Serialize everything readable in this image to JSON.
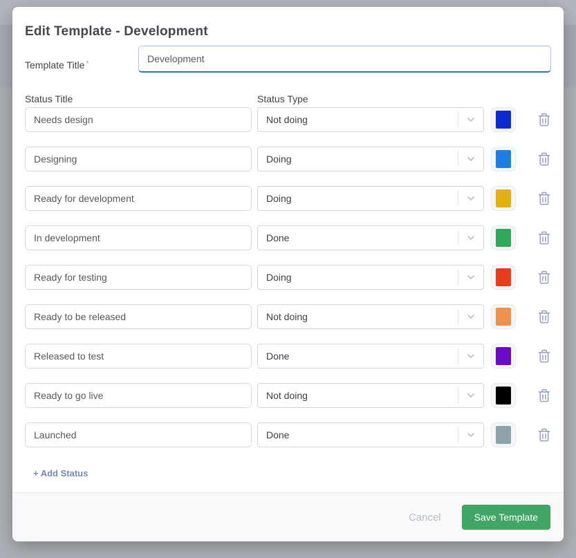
{
  "modal": {
    "title": "Edit Template - Development",
    "template_title": {
      "label": "Template Title",
      "required_mark": "*",
      "value": "Development"
    },
    "columns": {
      "status_title": "Status Title",
      "status_type": "Status Type"
    },
    "statuses": [
      {
        "title": "Needs design",
        "type": "Not doing",
        "color": "#0b2bd0"
      },
      {
        "title": "Designing",
        "type": "Doing",
        "color": "#1e7de2"
      },
      {
        "title": "Ready for development",
        "type": "Doing",
        "color": "#e2b013"
      },
      {
        "title": "In development",
        "type": "Done",
        "color": "#2fa85c"
      },
      {
        "title": "Ready for testing",
        "type": "Doing",
        "color": "#e83c1e"
      },
      {
        "title": "Ready to be released",
        "type": "Not doing",
        "color": "#f0914d"
      },
      {
        "title": "Released to test",
        "type": "Done",
        "color": "#6a0ac9"
      },
      {
        "title": "Ready to go live",
        "type": "Not doing",
        "color": "#000000"
      },
      {
        "title": "Launched",
        "type": "Done",
        "color": "#8ba5a9"
      }
    ],
    "add_status_label": "+ Add Status",
    "footer": {
      "cancel_label": "Cancel",
      "save_label": "Save Template",
      "save_color": "#41a565"
    },
    "accent_focus_border": "#2f72c4",
    "icon_color": "#9aa3c0"
  }
}
